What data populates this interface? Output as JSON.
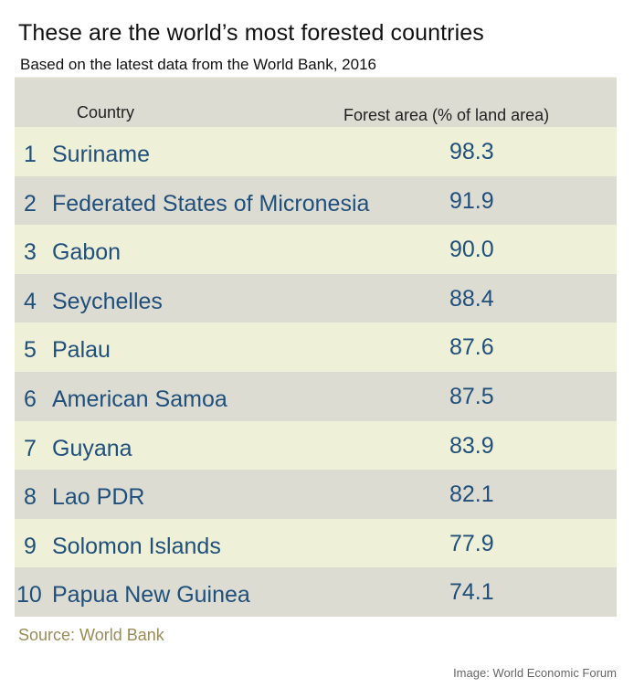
{
  "title": "These are the world’s most forested countries",
  "subtitle": "Based on the latest data from the World Bank, 2016",
  "source": "Source: World Bank",
  "credit": "Image: World Economic Forum",
  "colors": {
    "header_bg": "#dddcd3",
    "row_light": "#eef0d8",
    "row_dark": "#dddcd3",
    "text_blue": "#1f4f7a",
    "source_text": "#9b8b58"
  },
  "chart_data": {
    "type": "table",
    "columns": [
      "Country",
      "Forest area  (% of land area)"
    ],
    "rows": [
      {
        "rank": "1",
        "country": "Suriname",
        "value": "98.3"
      },
      {
        "rank": "2",
        "country": "Federated States of Micronesia",
        "value": "91.9"
      },
      {
        "rank": "3",
        "country": "Gabon",
        "value": "90.0"
      },
      {
        "rank": "4",
        "country": "Seychelles",
        "value": "88.4"
      },
      {
        "rank": "5",
        "country": "Palau",
        "value": "87.6"
      },
      {
        "rank": "6",
        "country": "American Samoa",
        "value": "87.5"
      },
      {
        "rank": "7",
        "country": "Guyana",
        "value": "83.9"
      },
      {
        "rank": "8",
        "country": "Lao PDR",
        "value": "82.1"
      },
      {
        "rank": "9",
        "country": "Solomon Islands",
        "value": "77.9"
      },
      {
        "rank": "10",
        "country": "Papua New Guinea",
        "value": "74.1"
      }
    ]
  }
}
